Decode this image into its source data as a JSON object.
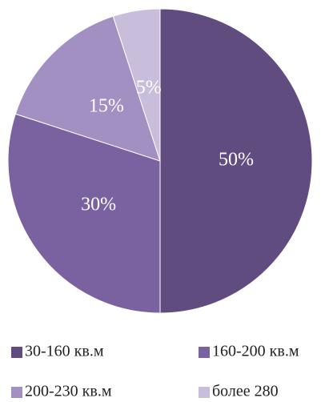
{
  "chart_data": {
    "type": "pie",
    "categories": [
      "30-160 кв.м",
      "160-200 кв.м",
      "200-230 кв.м",
      "более 280"
    ],
    "values": [
      50,
      30,
      15,
      5
    ],
    "value_labels": [
      "50%",
      "30%",
      "15%",
      "5%"
    ],
    "colors": [
      "#614c80",
      "#7a62a1",
      "#a190c1",
      "#c8bedb"
    ],
    "legend": "bottom"
  }
}
